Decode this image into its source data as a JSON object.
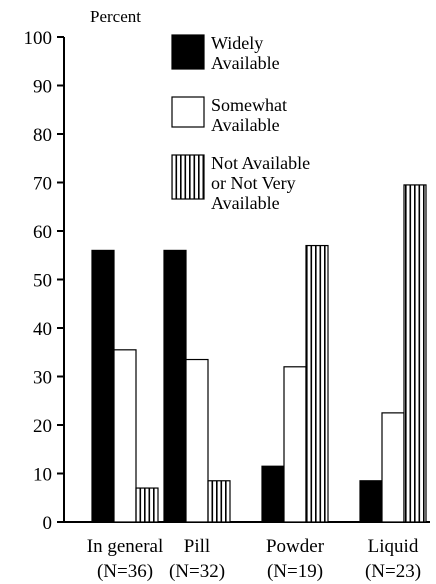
{
  "chart_data": {
    "type": "bar",
    "ylabel": "Percent",
    "xlabel": "",
    "ylim": [
      0,
      100
    ],
    "yticks": [
      "0",
      "10",
      "20",
      "30",
      "40",
      "50",
      "60",
      "70",
      "80",
      "90",
      "100"
    ],
    "grid": false,
    "legend_position": "top-right",
    "categories": [
      {
        "label": "In general",
        "n_label": "(N=36)"
      },
      {
        "label": "Pill",
        "n_label": "(N=32)"
      },
      {
        "label": "Powder",
        "n_label": "(N=19)"
      },
      {
        "label": "Liquid",
        "n_label": "(N=23)"
      }
    ],
    "series": [
      {
        "name": "Widely Available",
        "legend_lines": [
          "Widely",
          "Available"
        ],
        "fill": "solid",
        "color": "#000000",
        "values": [
          56,
          56,
          11.5,
          8.5
        ]
      },
      {
        "name": "Somewhat Available",
        "legend_lines": [
          "Somewhat",
          "Available"
        ],
        "fill": "open",
        "color": "#ffffff",
        "values": [
          35.5,
          33.5,
          32,
          22.5
        ]
      },
      {
        "name": "Not Available or Not Very Available",
        "legend_lines": [
          "Not Available",
          "or Not Very",
          "Available"
        ],
        "fill": "vertical-stripes",
        "color": "#000000",
        "values": [
          7,
          8.5,
          57,
          69.5
        ]
      }
    ]
  }
}
